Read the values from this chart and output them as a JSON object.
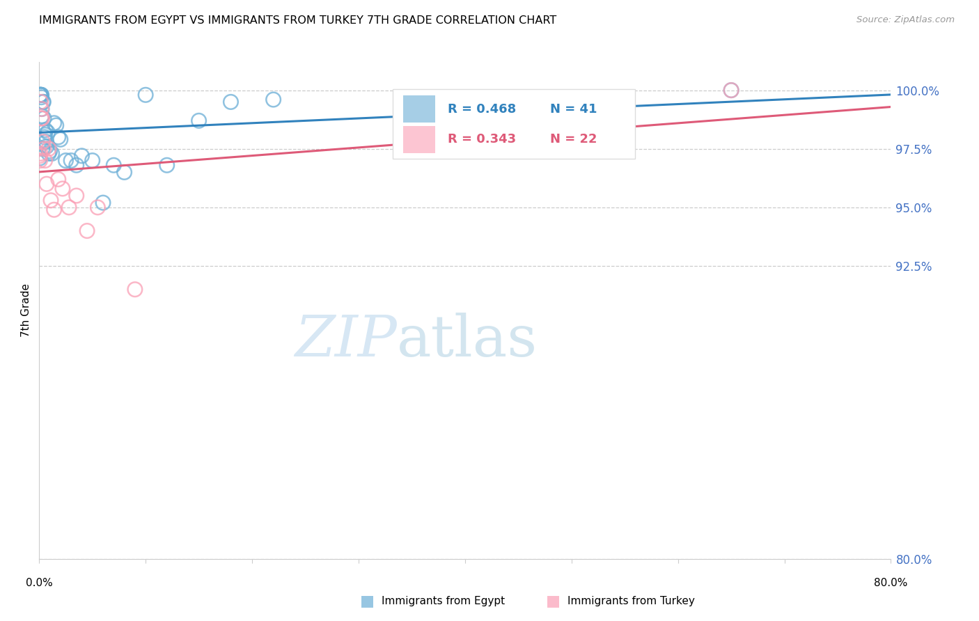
{
  "title": "IMMIGRANTS FROM EGYPT VS IMMIGRANTS FROM TURKEY 7TH GRADE CORRELATION CHART",
  "source": "Source: ZipAtlas.com",
  "ylabel": "7th Grade",
  "y_ticks": [
    80.0,
    92.5,
    95.0,
    97.5,
    100.0
  ],
  "xlim": [
    0.0,
    80.0
  ],
  "ylim": [
    80.0,
    101.2
  ],
  "egypt_color": "#6baed6",
  "turkey_color": "#fa9fb5",
  "egypt_line_color": "#3182bd",
  "turkey_line_color": "#de5a78",
  "legend_R_egypt": "0.468",
  "legend_N_egypt": "41",
  "legend_R_turkey": "0.343",
  "legend_N_turkey": "22",
  "egypt_x": [
    0.05,
    0.08,
    0.1,
    0.12,
    0.15,
    0.18,
    0.2,
    0.22,
    0.25,
    0.28,
    0.3,
    0.35,
    0.4,
    0.45,
    0.5,
    0.55,
    0.6,
    0.65,
    0.7,
    0.8,
    0.9,
    1.0,
    1.2,
    1.4,
    1.6,
    1.8,
    2.0,
    2.5,
    3.0,
    3.5,
    4.0,
    5.0,
    6.0,
    7.0,
    8.0,
    10.0,
    12.0,
    15.0,
    18.0,
    22.0,
    65.0
  ],
  "egypt_y": [
    97.1,
    99.8,
    99.8,
    99.8,
    99.8,
    99.8,
    99.7,
    99.8,
    99.2,
    98.9,
    97.5,
    99.5,
    99.5,
    98.8,
    98.0,
    98.1,
    98.3,
    97.8,
    97.6,
    98.2,
    97.3,
    97.4,
    97.3,
    98.6,
    98.5,
    98.0,
    97.9,
    97.0,
    97.0,
    96.8,
    97.2,
    97.0,
    95.2,
    96.8,
    96.5,
    99.8,
    96.8,
    98.7,
    99.5,
    99.6,
    100.0
  ],
  "turkey_x": [
    0.05,
    0.08,
    0.12,
    0.15,
    0.18,
    0.22,
    0.28,
    0.35,
    0.45,
    0.55,
    0.7,
    0.9,
    1.1,
    1.4,
    1.8,
    2.2,
    2.8,
    3.5,
    4.5,
    5.5,
    9.0,
    65.0
  ],
  "turkey_y": [
    97.2,
    97.0,
    97.3,
    99.5,
    98.8,
    99.2,
    98.8,
    97.8,
    97.5,
    97.0,
    96.0,
    97.5,
    95.3,
    94.9,
    96.2,
    95.8,
    95.0,
    95.5,
    94.0,
    95.0,
    91.5,
    100.0
  ]
}
